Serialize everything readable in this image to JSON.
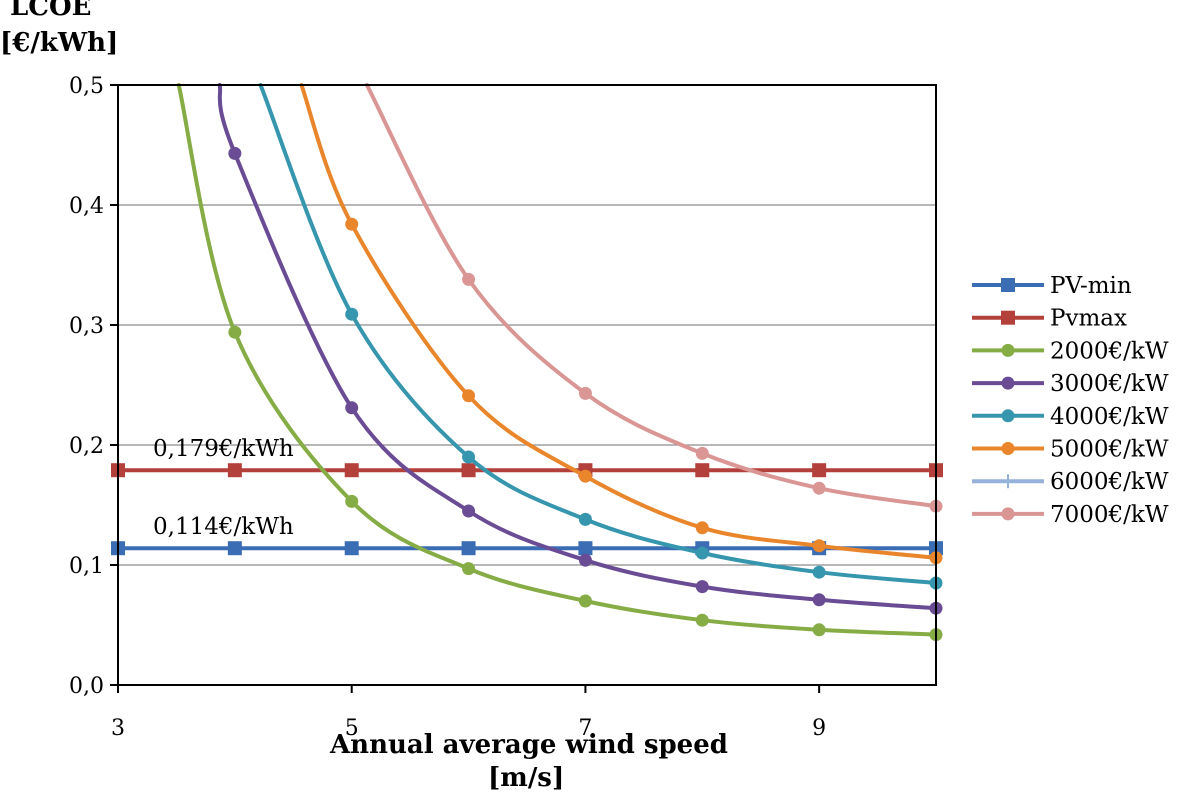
{
  "chart_data": {
    "type": "line",
    "ylabel_line1": "LCOE",
    "ylabel_line2": "[€/kWh]",
    "xlabel_line1": "Annual average wind speed",
    "xlabel_line2": "[m/s]",
    "xlim": [
      3,
      10
    ],
    "ylim": [
      0,
      0.5
    ],
    "x_ticks": [
      3,
      5,
      7,
      9
    ],
    "x_tick_labels": [
      "3",
      "5",
      "7",
      "9"
    ],
    "y_ticks": [
      0,
      0.1,
      0.2,
      0.3,
      0.4,
      0.5
    ],
    "y_tick_labels": [
      "0,0",
      "0,1",
      "0,2",
      "0,3",
      "0,4",
      "0,5"
    ],
    "grid": "horizontal",
    "legend_position": "right",
    "annotations": [
      {
        "text": "0,179€/kWh",
        "x": 3.3,
        "y": 0.179
      },
      {
        "text": "0,114€/kWh",
        "x": 3.3,
        "y": 0.114
      }
    ],
    "x": [
      3,
      4,
      5,
      6,
      7,
      8,
      9,
      10
    ],
    "series": [
      {
        "name": "PV-min",
        "color": "#3b6db5",
        "marker": "square",
        "curve": false,
        "x": [
          3,
          4,
          5,
          6,
          7,
          8,
          9,
          10
        ],
        "values": [
          0.114,
          0.114,
          0.114,
          0.114,
          0.114,
          0.114,
          0.114,
          0.114
        ]
      },
      {
        "name": "Pvmax",
        "color": "#b3403b",
        "marker": "square",
        "curve": false,
        "x": [
          3,
          4,
          5,
          6,
          7,
          8,
          9,
          10
        ],
        "values": [
          0.179,
          0.179,
          0.179,
          0.179,
          0.179,
          0.179,
          0.179,
          0.179
        ]
      },
      {
        "name": "2000€/kW",
        "color": "#86ac46",
        "marker": "circle",
        "curve": true,
        "x": [
          3.52,
          4,
          5,
          6,
          7,
          8,
          9,
          10
        ],
        "values": [
          0.5,
          0.294,
          0.153,
          0.097,
          0.07,
          0.054,
          0.046,
          0.042
        ]
      },
      {
        "name": "3000€/kW",
        "color": "#6a4c94",
        "marker": "circle",
        "curve": true,
        "x": [
          3.87,
          4,
          5,
          6,
          7,
          8,
          9,
          10
        ],
        "values": [
          0.5,
          0.443,
          0.231,
          0.145,
          0.104,
          0.082,
          0.071,
          0.064
        ]
      },
      {
        "name": "4000€/kW",
        "color": "#3596ae",
        "marker": "circle",
        "curve": true,
        "x": [
          4.22,
          5,
          6,
          7,
          8,
          9,
          10
        ],
        "values": [
          0.5,
          0.309,
          0.19,
          0.138,
          0.11,
          0.094,
          0.085
        ]
      },
      {
        "name": "5000€/kW",
        "color": "#e9862c",
        "marker": "circle",
        "curve": true,
        "x": [
          4.57,
          5,
          6,
          7,
          8,
          9,
          10
        ],
        "values": [
          0.5,
          0.384,
          0.241,
          0.174,
          0.131,
          0.116,
          0.106
        ]
      },
      {
        "name": "6000€/kW",
        "color": "#94b2dc",
        "marker": "plus",
        "curve": false,
        "x": [],
        "values": []
      },
      {
        "name": "7000€/kW",
        "color": "#d99694",
        "marker": "circle",
        "curve": true,
        "x": [
          5.13,
          6,
          7,
          8,
          9,
          10
        ],
        "values": [
          0.5,
          0.338,
          0.243,
          0.193,
          0.164,
          0.149
        ]
      }
    ]
  }
}
